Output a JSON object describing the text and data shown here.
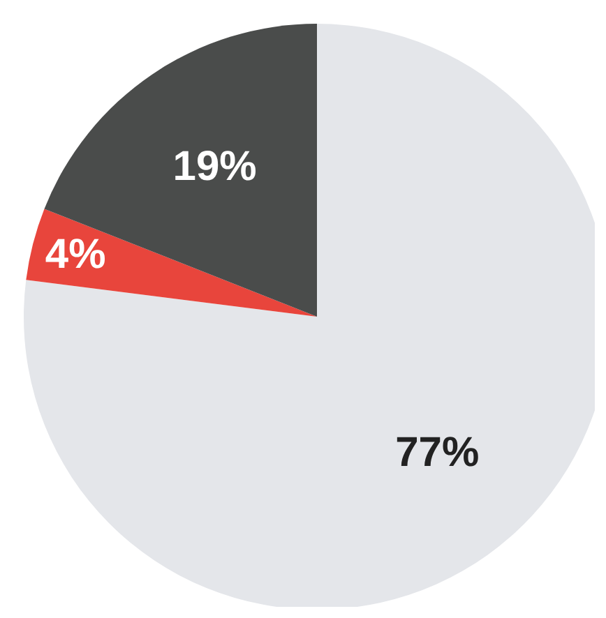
{
  "chart_data": {
    "type": "pie",
    "categories": [
      null,
      null,
      null
    ],
    "values": [
      77,
      4,
      19
    ],
    "colors": [
      "#e4e6ea",
      "#e8453c",
      "#4a4c4b"
    ],
    "value_labels": [
      "77%",
      "4%",
      "19%"
    ]
  }
}
